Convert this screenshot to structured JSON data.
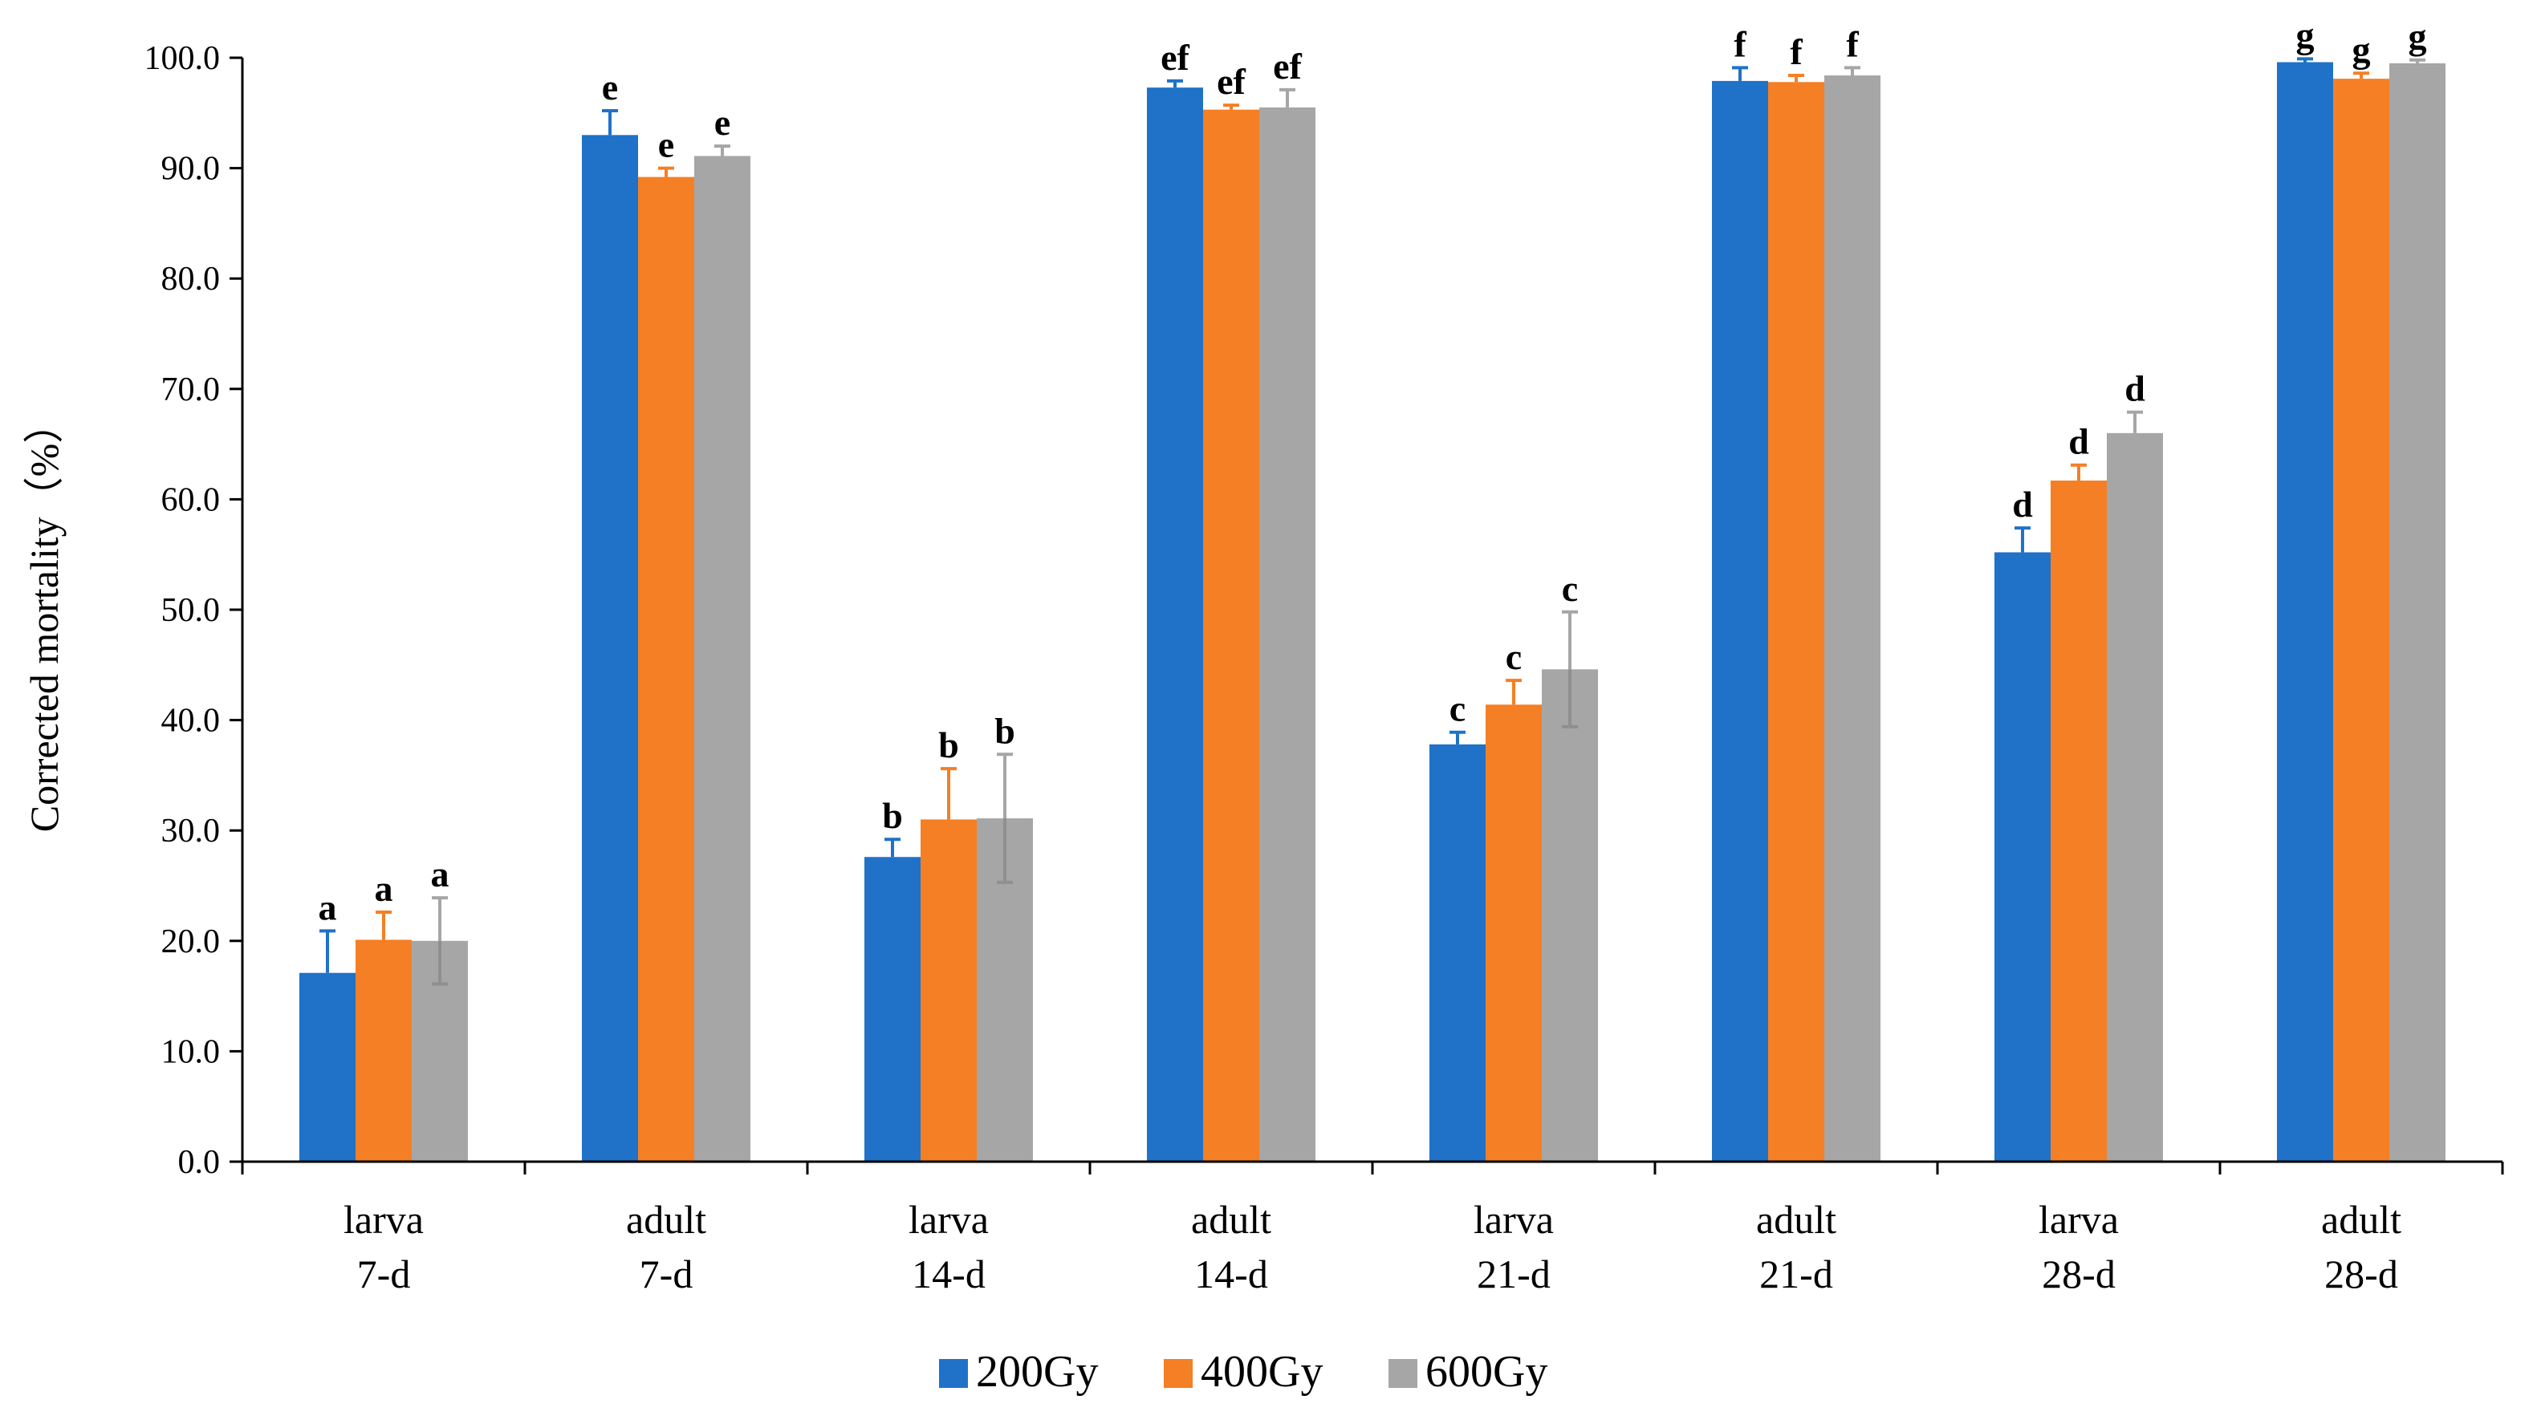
{
  "chart_data": {
    "type": "bar",
    "title": "",
    "xlabel": "",
    "ylabel": "Corrected mortality（%）",
    "ylim": [
      0,
      100
    ],
    "ytick_step": 10,
    "ytick_labels": [
      "0.0",
      "10.0",
      "20.0",
      "30.0",
      "40.0",
      "50.0",
      "60.0",
      "70.0",
      "80.0",
      "90.0",
      "100.0"
    ],
    "grid": false,
    "legend_position": "bottom-center",
    "categories": [
      {
        "line1": "larva",
        "line2": "7-d"
      },
      {
        "line1": "adult",
        "line2": "7-d"
      },
      {
        "line1": "larva",
        "line2": "14-d"
      },
      {
        "line1": "adult",
        "line2": "14-d"
      },
      {
        "line1": "larva",
        "line2": "21-d"
      },
      {
        "line1": "adult",
        "line2": "21-d"
      },
      {
        "line1": "larva",
        "line2": "28-d"
      },
      {
        "line1": "adult",
        "line2": "28-d"
      }
    ],
    "series": [
      {
        "name": "200Gy",
        "color": "#1f72c8",
        "values": [
          17.1,
          93.0,
          27.6,
          97.3,
          37.8,
          97.9,
          55.2,
          99.6
        ],
        "errors": [
          3.8,
          2.2,
          1.6,
          0.6,
          1.1,
          1.2,
          2.2,
          0.3
        ],
        "significance": [
          "a",
          "e",
          "b",
          "ef",
          "c",
          "f",
          "d",
          "g"
        ]
      },
      {
        "name": "400Gy",
        "color": "#f57f24",
        "values": [
          20.1,
          89.2,
          31.0,
          95.3,
          41.4,
          97.8,
          61.7,
          98.1
        ],
        "errors": [
          2.5,
          0.8,
          4.6,
          0.4,
          2.2,
          0.6,
          1.4,
          0.5
        ],
        "significance": [
          "a",
          "e",
          "b",
          "ef",
          "c",
          "f",
          "d",
          "g"
        ]
      },
      {
        "name": "600Gy",
        "color": "#a6a6a6",
        "values": [
          20.0,
          91.1,
          31.1,
          95.5,
          44.6,
          98.4,
          66.0,
          99.5
        ],
        "errors": [
          3.9,
          0.9,
          5.8,
          1.6,
          5.2,
          0.7,
          1.9,
          0.3
        ],
        "significance": [
          "a",
          "e",
          "b",
          "ef",
          "c",
          "f",
          "d",
          "g"
        ]
      }
    ]
  }
}
